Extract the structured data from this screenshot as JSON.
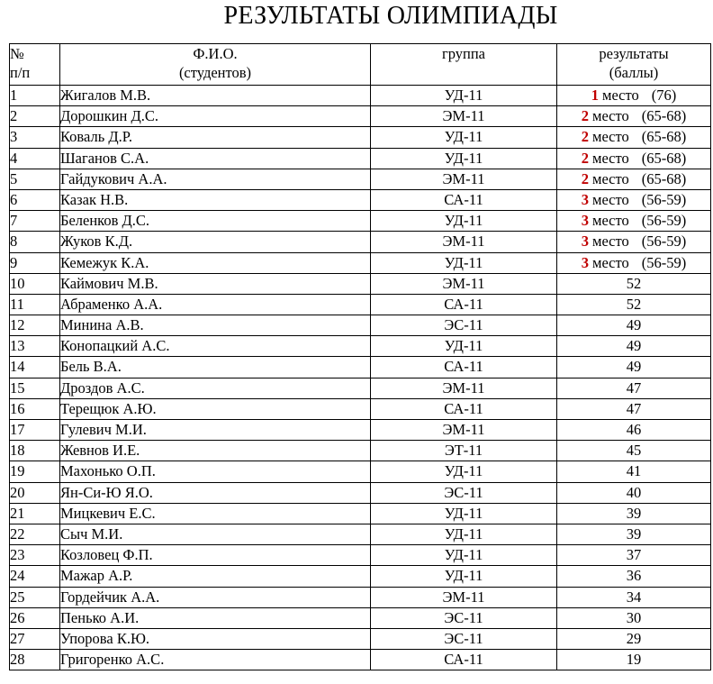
{
  "title": "РЕЗУЛЬТАТЫ ОЛИМПИАДЫ",
  "colors": {
    "place_number": "#c00000",
    "text": "#000000",
    "border": "#000000"
  },
  "headers": {
    "num": [
      "№",
      "п/п"
    ],
    "name": [
      "Ф.И.О.",
      "(студентов)"
    ],
    "group": [
      "группа"
    ],
    "result": [
      "результаты",
      "(баллы)"
    ]
  },
  "rows": [
    {
      "num": "1",
      "name": "Жигалов М.В.",
      "group": "УД-11",
      "place": "1",
      "place_word": "место",
      "score": "(76)"
    },
    {
      "num": "2",
      "name": "Дорошкин Д.С.",
      "group": "ЭМ-11",
      "place": "2",
      "place_word": "место",
      "score": "(65-68)"
    },
    {
      "num": "3",
      "name": "Коваль Д.Р.",
      "group": "УД-11",
      "place": "2",
      "place_word": "место",
      "score": "(65-68)"
    },
    {
      "num": "4",
      "name": "Шаганов С.А.",
      "group": "УД-11",
      "place": "2",
      "place_word": "место",
      "score": "(65-68)"
    },
    {
      "num": "5",
      "name": "Гайдукович А.А.",
      "group": "ЭМ-11",
      "place": "2",
      "place_word": "место",
      "score": "(65-68)"
    },
    {
      "num": "6",
      "name": "Казак Н.В.",
      "group": "СА-11",
      "place": "3",
      "place_word": "место",
      "score": "(56-59)"
    },
    {
      "num": "7",
      "name": "Беленков Д.С.",
      "group": "УД-11",
      "place": "3",
      "place_word": "место",
      "score": "(56-59)"
    },
    {
      "num": "8",
      "name": "Жуков К.Д.",
      "group": "ЭМ-11",
      "place": "3",
      "place_word": "место",
      "score": "(56-59)"
    },
    {
      "num": "9",
      "name": "Кемежук К.А.",
      "group": "УД-11",
      "place": "3",
      "place_word": "место",
      "score": "(56-59)"
    },
    {
      "num": "10",
      "name": "Каймович М.В.",
      "group": "ЭМ-11",
      "score": "52"
    },
    {
      "num": "11",
      "name": "Абраменко А.А.",
      "group": "СА-11",
      "score": "52"
    },
    {
      "num": "12",
      "name": "Минина А.В.",
      "group": "ЭС-11",
      "score": "49"
    },
    {
      "num": "13",
      "name": "Конопацкий А.С.",
      "group": "УД-11",
      "score": "49"
    },
    {
      "num": "14",
      "name": "Бель В.А.",
      "group": "СА-11",
      "score": "49"
    },
    {
      "num": "15",
      "name": "Дроздов А.С.",
      "group": "ЭМ-11",
      "score": "47"
    },
    {
      "num": "16",
      "name": "Терещюк А.Ю.",
      "group": "СА-11",
      "score": "47"
    },
    {
      "num": "17",
      "name": "Гулевич М.И.",
      "group": "ЭМ-11",
      "score": "46"
    },
    {
      "num": "18",
      "name": "Жевнов И.Е.",
      "group": "ЭТ-11",
      "score": "45"
    },
    {
      "num": "19",
      "name": "Махонько О.П.",
      "group": "УД-11",
      "score": "41"
    },
    {
      "num": "20",
      "name": "Ян-Си-Ю Я.О.",
      "group": "ЭС-11",
      "score": "40"
    },
    {
      "num": "21",
      "name": "Мицкевич Е.С.",
      "group": "УД-11",
      "score": "39"
    },
    {
      "num": "22",
      "name": "Сыч М.И.",
      "group": "УД-11",
      "score": "39"
    },
    {
      "num": "23",
      "name": "Козловец Ф.П.",
      "group": "УД-11",
      "score": "37"
    },
    {
      "num": "24",
      "name": "Мажар А.Р.",
      "group": "УД-11",
      "score": "36"
    },
    {
      "num": "25",
      "name": "Гордейчик А.А.",
      "group": "ЭМ-11",
      "score": "34"
    },
    {
      "num": "26",
      "name": "Пенько А.И.",
      "group": "ЭС-11",
      "score": "30"
    },
    {
      "num": "27",
      "name": "Упорова К.Ю.",
      "group": "ЭС-11",
      "score": "29"
    },
    {
      "num": "28",
      "name": "Григоренко А.С.",
      "group": "СА-11",
      "score": "19"
    }
  ]
}
